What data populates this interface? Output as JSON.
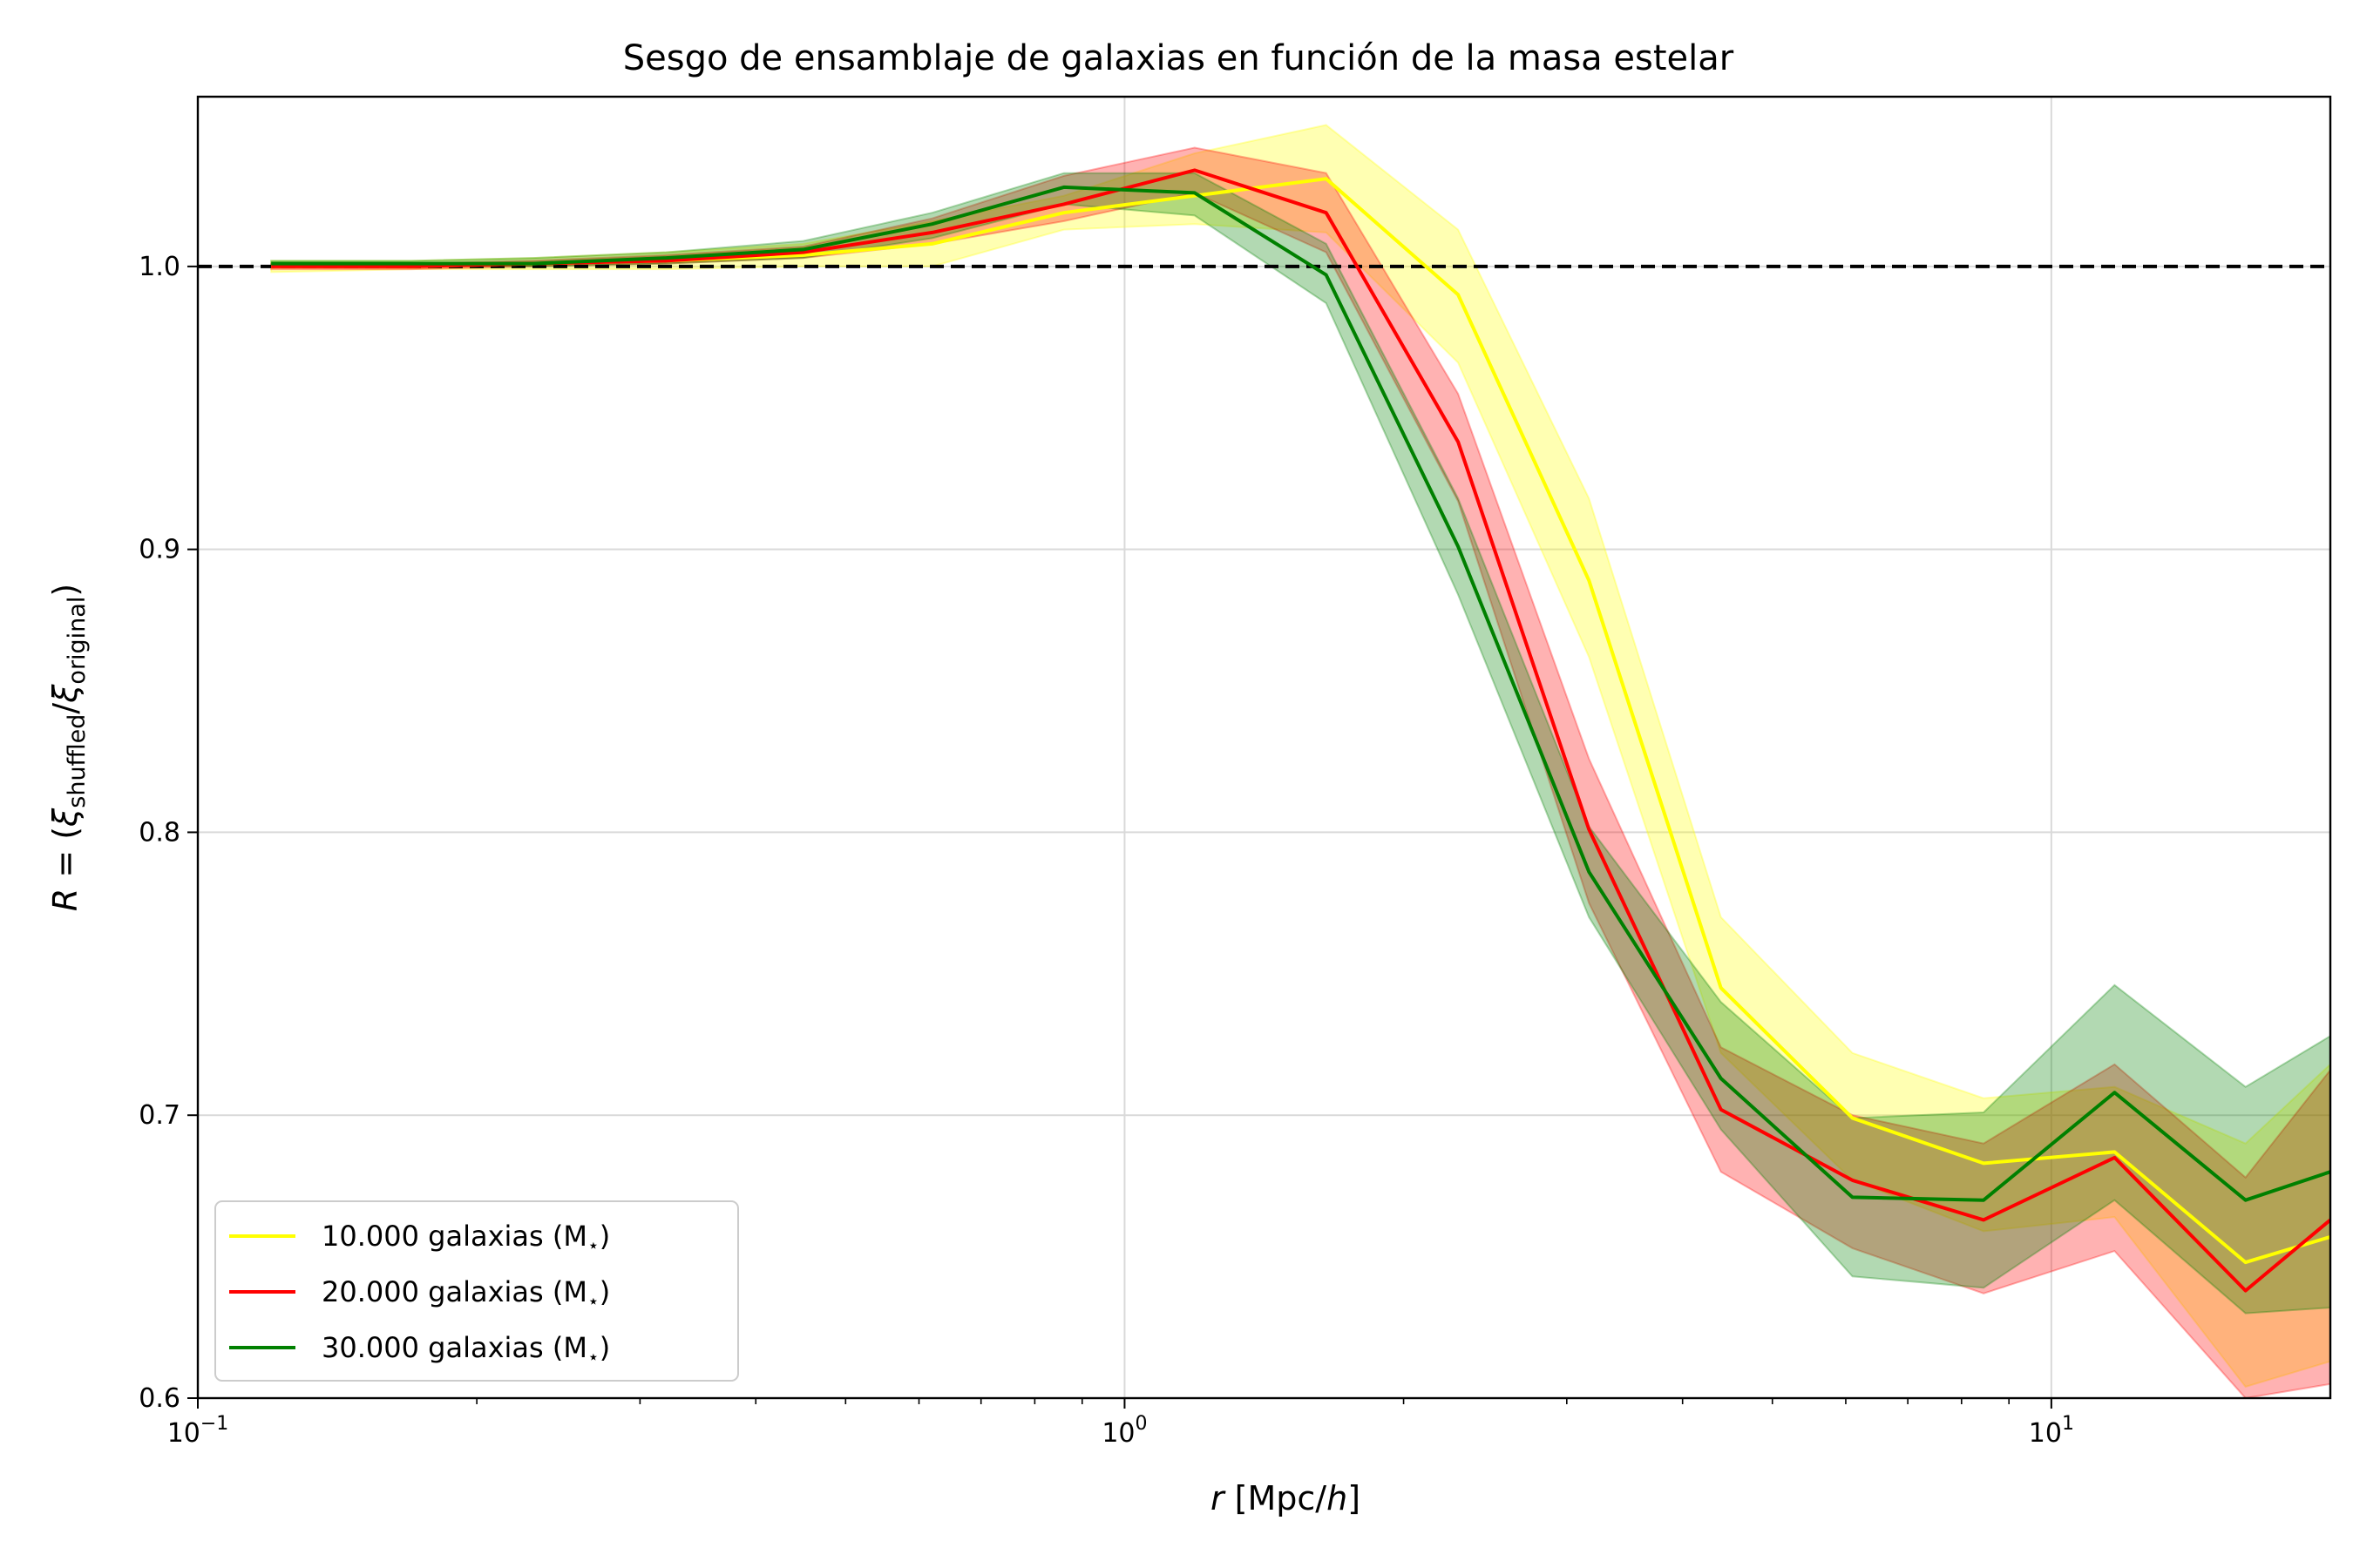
{
  "chart_data": {
    "type": "line",
    "title": "Sesgo de ensamblaje de galaxias en función de la masa estelar",
    "xlabel": {
      "var": "r",
      "unit_open": " [Mpc/",
      "unit_var": "h",
      "unit_close": "]"
    },
    "ylabel": {
      "lhs": "R",
      "eq": " = (",
      "xi1": "ξ",
      "sub1": "shuffled",
      "slash": "/",
      "xi2": "ξ",
      "sub2": "original",
      "close": ")"
    },
    "x_scale": "log",
    "xlim": [
      0.1,
      20
    ],
    "ylim": [
      0.6,
      1.06
    ],
    "x_ticks": [
      {
        "value": 0.1,
        "base": "10",
        "exp": "−1"
      },
      {
        "value": 1,
        "base": "10",
        "exp": "0"
      },
      {
        "value": 10,
        "base": "10",
        "exp": "1"
      }
    ],
    "y_ticks": [
      {
        "value": 0.6,
        "label": "0.6"
      },
      {
        "value": 0.7,
        "label": "0.7"
      },
      {
        "value": 0.8,
        "label": "0.8"
      },
      {
        "value": 0.9,
        "label": "0.9"
      },
      {
        "value": 1.0,
        "label": "1.0"
      }
    ],
    "grid": true,
    "reference_line": {
      "y": 1.0,
      "style": "dashed",
      "color": "#000000"
    },
    "legend_position": "lower-left",
    "x": [
      0.12,
      0.17,
      0.23,
      0.32,
      0.45,
      0.62,
      0.86,
      1.19,
      1.65,
      2.29,
      3.17,
      4.4,
      6.1,
      8.45,
      11.7,
      16.2,
      20
    ],
    "series": [
      {
        "name": "10.000 galaxias (M",
        "name_sub": "⋆",
        "name_close": ")",
        "color": "#ffff00",
        "values": [
          1.0,
          1.0,
          1.001,
          1.002,
          1.004,
          1.008,
          1.019,
          1.025,
          1.031,
          0.99,
          0.889,
          0.745,
          0.699,
          0.683,
          0.687,
          0.648,
          0.657
        ],
        "lower": [
          0.998,
          0.999,
          0.999,
          0.999,
          1.0,
          1.0,
          1.013,
          1.015,
          1.012,
          0.966,
          0.862,
          0.722,
          0.677,
          0.659,
          0.664,
          0.604,
          0.613
        ],
        "upper": [
          1.002,
          1.002,
          1.003,
          1.005,
          1.008,
          1.016,
          1.025,
          1.04,
          1.05,
          1.013,
          0.918,
          0.77,
          0.722,
          0.706,
          0.71,
          0.69,
          0.718
        ]
      },
      {
        "name": "20.000 galaxias (M",
        "name_sub": "⋆",
        "name_close": ")",
        "color": "#ff0000",
        "values": [
          1.0,
          1.0,
          1.001,
          1.002,
          1.005,
          1.012,
          1.022,
          1.034,
          1.019,
          0.938,
          0.801,
          0.702,
          0.677,
          0.663,
          0.685,
          0.638,
          0.663
        ],
        "lower": [
          0.999,
          0.999,
          1.0,
          1.001,
          1.003,
          1.008,
          1.016,
          1.026,
          1.005,
          0.917,
          0.775,
          0.68,
          0.653,
          0.637,
          0.652,
          0.6,
          0.605
        ],
        "upper": [
          1.001,
          1.001,
          1.002,
          1.004,
          1.007,
          1.017,
          1.032,
          1.042,
          1.033,
          0.955,
          0.826,
          0.724,
          0.7,
          0.69,
          0.718,
          0.678,
          0.716
        ]
      },
      {
        "name": "30.000 galaxias (M",
        "name_sub": "⋆",
        "name_close": ")",
        "color": "#008000",
        "values": [
          1.001,
          1.001,
          1.001,
          1.003,
          1.006,
          1.015,
          1.028,
          1.026,
          0.997,
          0.901,
          0.786,
          0.713,
          0.671,
          0.67,
          0.708,
          0.67,
          0.68
        ],
        "lower": [
          1.0,
          1.0,
          1.0,
          1.001,
          1.003,
          1.01,
          1.022,
          1.018,
          0.987,
          0.884,
          0.77,
          0.695,
          0.643,
          0.639,
          0.67,
          0.63,
          0.632
        ],
        "upper": [
          1.002,
          1.002,
          1.003,
          1.005,
          1.009,
          1.019,
          1.033,
          1.033,
          1.008,
          0.918,
          0.802,
          0.74,
          0.699,
          0.701,
          0.746,
          0.71,
          0.728
        ]
      }
    ]
  }
}
